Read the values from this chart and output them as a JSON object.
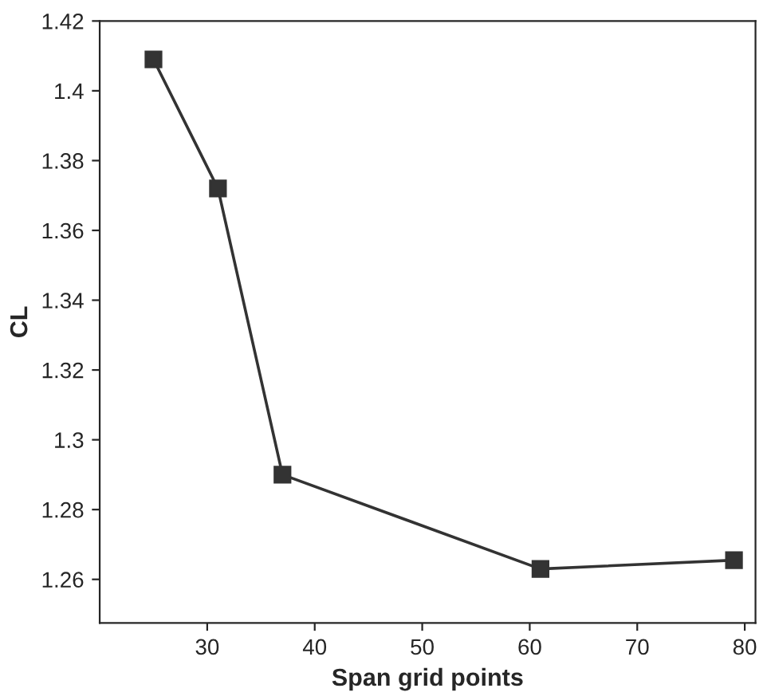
{
  "chart_data": {
    "type": "line",
    "xlabel": "Span grid points",
    "ylabel": "CL",
    "x": [
      25,
      31,
      37,
      61,
      79
    ],
    "series": [
      {
        "color": "#333333",
        "values": [
          1.409,
          1.372,
          1.29,
          1.263,
          1.2655
        ]
      }
    ],
    "xlim": [
      20,
      81
    ],
    "xticks": [
      30,
      40,
      50,
      60,
      70,
      80
    ],
    "ylim": [
      1.2475,
      1.42
    ],
    "yticks": [
      1.26,
      1.28,
      1.3,
      1.32,
      1.34,
      1.36,
      1.38,
      1.4,
      1.42
    ],
    "marker": "square",
    "line_style": "solid",
    "grid": false,
    "legend": false
  }
}
